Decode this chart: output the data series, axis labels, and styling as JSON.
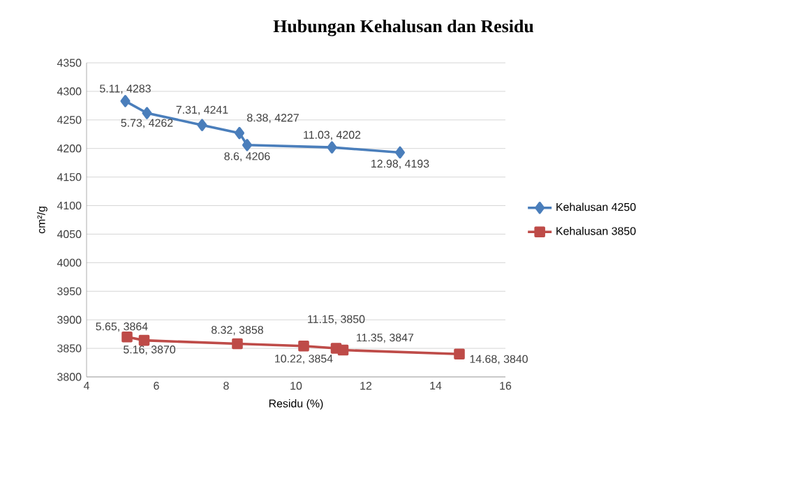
{
  "chart_data": {
    "type": "line",
    "title": "Hubungan Kehalusan dan Residu",
    "xlabel": "Residu (%)",
    "ylabel": "cm²/g",
    "xlim": [
      4,
      16
    ],
    "xticks": [
      4,
      6,
      8,
      10,
      12,
      14,
      16
    ],
    "ylim": [
      3800,
      4350
    ],
    "yticks": [
      3800,
      3850,
      3900,
      3950,
      4000,
      4050,
      4100,
      4150,
      4200,
      4250,
      4300,
      4350
    ],
    "grid": "y",
    "legend": "right",
    "line_style": "solid",
    "series": [
      {
        "name": "Kehalusan 4250",
        "color": "#4a7ebb",
        "marker": "diamond",
        "x": [
          5.11,
          5.73,
          7.31,
          8.38,
          8.6,
          11.03,
          12.98
        ],
        "values": [
          4283,
          4262,
          4241,
          4227,
          4206,
          4202,
          4193
        ],
        "value_labels": [
          "5.11, 4283",
          "5.73, 4262",
          "7.31, 4241",
          "8.38, 4227",
          "8.6, 4206",
          "11.03, 4202",
          "12.98, 4193"
        ]
      },
      {
        "name": "Kehalusan 3850",
        "color": "#be4b48",
        "marker": "square",
        "x": [
          5.16,
          5.65,
          8.32,
          10.22,
          11.15,
          11.35,
          14.68
        ],
        "values": [
          3870,
          3864,
          3858,
          3854,
          3850,
          3847,
          3840
        ],
        "value_labels": [
          "5.16, 3870",
          "5.65, 3864",
          "8.32, 3858",
          "10.22, 3854",
          "11.15, 3850",
          "11.35, 3847",
          "14.68, 3840"
        ]
      }
    ]
  }
}
